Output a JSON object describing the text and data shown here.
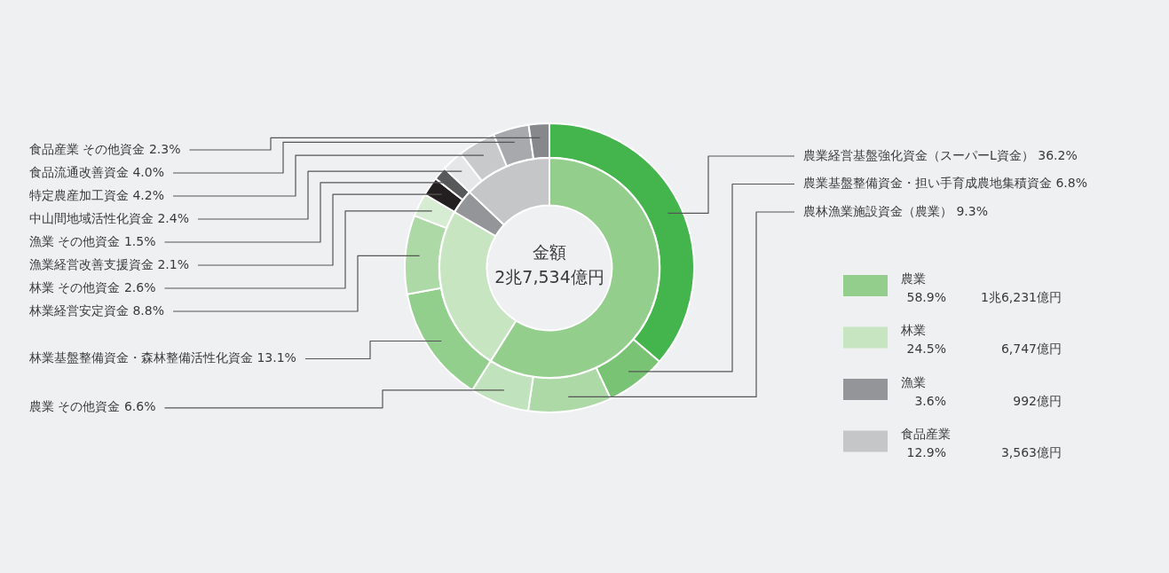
{
  "chart_data": [
    {
      "type": "donut",
      "title": "金額",
      "subtitle": "2兆7,534億円",
      "categories": [
        "農業",
        "林業",
        "漁業",
        "食品産業"
      ],
      "values": [
        58.9,
        24.5,
        3.6,
        12.9
      ],
      "colors": [
        "#94ce8c",
        "#c8e5c2",
        "#939598",
        "#c5c6c8"
      ],
      "value_labels": [
        "58.9%",
        "24.5%",
        "3.6%",
        "12.9%"
      ],
      "legend": "right",
      "annotations": [
        {
          "text": "1兆6,231億円",
          "x": "農業"
        },
        {
          "text": "6,747億円",
          "x": "林業"
        },
        {
          "text": "992億円",
          "x": "漁業"
        },
        {
          "text": "3,563億円",
          "x": "食品産業"
        }
      ]
    },
    {
      "type": "donut",
      "categories": [
        "農業経営基盤強化資金（スーパーL資金）",
        "農業基盤整備資金・担い手育成農地集積資金",
        "農林漁業施設資金（農業）",
        "農業 その他資金",
        "林業基盤整備資金・森林整備活性化資金",
        "林業経営安定資金",
        "林業 その他資金",
        "漁業経営改善支援資金",
        "漁業 その他資金",
        "中山間地域活性化資金",
        "特定農産加工資金",
        "食品流通改善資金",
        "食品産業 その他資金"
      ],
      "values": [
        36.2,
        6.8,
        9.3,
        6.6,
        13.1,
        8.8,
        2.6,
        2.1,
        1.5,
        2.4,
        4.2,
        4.0,
        2.3
      ],
      "colors": [
        "#43b54c",
        "#79c474",
        "#acd9a6",
        "#c0e2bc",
        "#93cf8c",
        "#acd9a6",
        "#d7edd3",
        "#231f20",
        "#58595b",
        "#e6e7e8",
        "#c8c9cb",
        "#a7a9ac",
        "#87888c"
      ],
      "value_labels": [
        "36.2%",
        "6.8%",
        "9.3%",
        "6.6%",
        "13.1%",
        "8.8%",
        "2.6%",
        "2.1%",
        "1.5%",
        "2.4%",
        "4.2%",
        "4.0%",
        "2.3%"
      ]
    }
  ]
}
